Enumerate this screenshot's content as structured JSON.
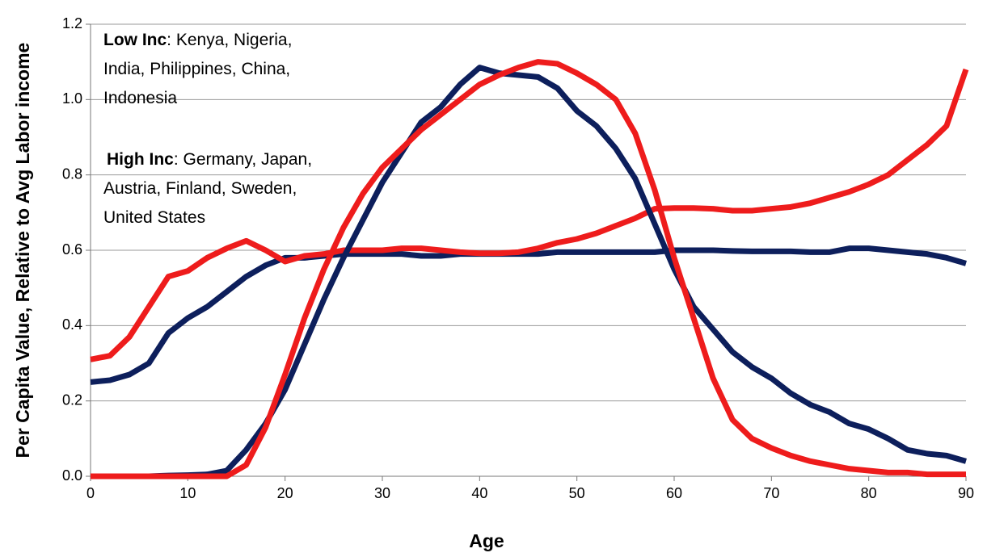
{
  "chart_data": {
    "type": "line",
    "y_label": "Per Capita Value, Relative to Avg Labor income",
    "x_label": "Age",
    "annotations": [
      {
        "label": "Low Inc",
        "lines": [
          ": Kenya, Nigeria,",
          "India, Philippines, China,",
          "Indonesia"
        ]
      },
      {
        "label": "High Inc",
        "lines": [
          ": Germany, Japan,",
          "Austria, Finland, Sweden,",
          "United States"
        ]
      }
    ],
    "x": [
      0,
      2,
      4,
      6,
      8,
      10,
      12,
      14,
      16,
      18,
      20,
      22,
      24,
      26,
      28,
      30,
      32,
      34,
      36,
      38,
      40,
      42,
      44,
      46,
      48,
      50,
      52,
      54,
      56,
      58,
      60,
      62,
      64,
      66,
      68,
      70,
      72,
      74,
      76,
      78,
      80,
      82,
      84,
      86,
      88,
      90
    ],
    "series": [
      {
        "color": "#0d1f5c",
        "values": [
          0.25,
          0.255,
          0.27,
          0.3,
          0.38,
          0.42,
          0.45,
          0.49,
          0.53,
          0.56,
          0.58,
          0.58,
          0.585,
          0.59,
          0.59,
          0.59,
          0.59,
          0.585,
          0.585,
          0.59,
          0.59,
          0.59,
          0.59,
          0.59,
          0.595,
          0.595,
          0.595,
          0.595,
          0.595,
          0.595,
          0.6,
          0.6,
          0.6,
          0.598,
          0.597,
          0.597,
          0.597,
          0.595,
          0.595,
          0.605,
          0.605,
          0.6,
          0.595,
          0.59,
          0.58,
          0.565
        ]
      },
      {
        "color": "#ee1c1c",
        "values": [
          0.31,
          0.32,
          0.37,
          0.45,
          0.53,
          0.545,
          0.58,
          0.605,
          0.625,
          0.6,
          0.57,
          0.585,
          0.59,
          0.6,
          0.6,
          0.6,
          0.605,
          0.605,
          0.6,
          0.595,
          0.592,
          0.592,
          0.595,
          0.605,
          0.62,
          0.63,
          0.645,
          0.665,
          0.685,
          0.71,
          0.712,
          0.712,
          0.71,
          0.705,
          0.705,
          0.71,
          0.715,
          0.725,
          0.74,
          0.755,
          0.775,
          0.8,
          0.84,
          0.88,
          0.93,
          1.08
        ]
      },
      {
        "color": "#0d1f5c",
        "values": [
          0,
          0,
          0,
          0,
          0.002,
          0.003,
          0.005,
          0.015,
          0.07,
          0.14,
          0.23,
          0.35,
          0.47,
          0.58,
          0.68,
          0.78,
          0.86,
          0.94,
          0.98,
          1.04,
          1.085,
          1.07,
          1.065,
          1.06,
          1.03,
          0.97,
          0.93,
          0.87,
          0.79,
          0.67,
          0.55,
          0.45,
          0.39,
          0.33,
          0.29,
          0.26,
          0.22,
          0.19,
          0.17,
          0.14,
          0.125,
          0.1,
          0.07,
          0.06,
          0.055,
          0.04
        ]
      },
      {
        "color": "#ee1c1c",
        "values": [
          0,
          0,
          0,
          0,
          0,
          0,
          0,
          0,
          0.03,
          0.13,
          0.27,
          0.42,
          0.55,
          0.66,
          0.75,
          0.82,
          0.87,
          0.92,
          0.96,
          1.0,
          1.04,
          1.065,
          1.085,
          1.1,
          1.095,
          1.07,
          1.04,
          1.0,
          0.91,
          0.76,
          0.58,
          0.42,
          0.26,
          0.15,
          0.1,
          0.075,
          0.055,
          0.04,
          0.03,
          0.02,
          0.015,
          0.01,
          0.01,
          0.005,
          0.005,
          0.005
        ]
      }
    ],
    "xlim": [
      0,
      90
    ],
    "xticks": [
      0,
      10,
      20,
      30,
      40,
      50,
      60,
      70,
      80,
      90
    ],
    "ylim": [
      0,
      1.2
    ],
    "yticks": [
      {
        "value": 0,
        "label": "0.0"
      },
      {
        "value": 0.2,
        "label": "0.2"
      },
      {
        "value": 0.4,
        "label": "0.4"
      },
      {
        "value": 0.6,
        "label": "0.6"
      },
      {
        "value": 0.8,
        "label": "0.8"
      },
      {
        "value": 1.0,
        "label": "1.0"
      },
      {
        "value": 1.2,
        "label": "1.2"
      }
    ],
    "grid": true
  }
}
